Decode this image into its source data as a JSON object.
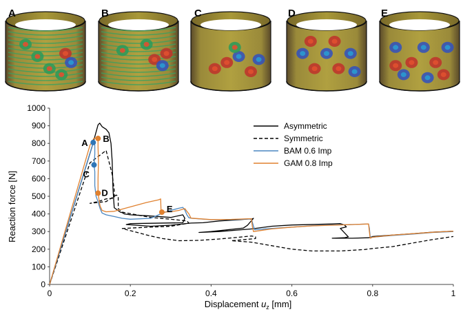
{
  "panels": [
    "A",
    "B",
    "C",
    "D",
    "E"
  ],
  "chart_data": {
    "type": "line",
    "xlabel_main": "Displacement ",
    "xlabel_italic": "u",
    "xlabel_sub": "z",
    "xlabel_unit": " [mm]",
    "ylabel": "Reaction force [N]",
    "xlim": [
      0,
      1
    ],
    "ylim": [
      0,
      1000
    ],
    "xticks": [
      "0",
      "0.2",
      "0.4",
      "0.6",
      "0.8",
      "1"
    ],
    "xtick_values": [
      0,
      0.2,
      0.4,
      0.6,
      0.8,
      1
    ],
    "yticks": [
      "0",
      "100",
      "200",
      "300",
      "400",
      "500",
      "600",
      "700",
      "800",
      "900",
      "1000"
    ],
    "ytick_values": [
      0,
      100,
      200,
      300,
      400,
      500,
      600,
      700,
      800,
      900,
      1000
    ],
    "legend_position": "top-right",
    "series": [
      {
        "name": "Asymmetric",
        "color": "#000000",
        "dash": "solid",
        "points": [
          [
            0,
            0
          ],
          [
            0.105,
            780
          ],
          [
            0.12,
            905
          ],
          [
            0.124,
            915
          ],
          [
            0.13,
            895
          ],
          [
            0.14,
            880
          ],
          [
            0.147,
            860
          ],
          [
            0.152,
            800
          ],
          [
            0.155,
            700
          ],
          [
            0.157,
            540
          ],
          [
            0.16,
            435
          ],
          [
            0.175,
            410
          ],
          [
            0.18,
            407
          ],
          [
            0.185,
            400
          ],
          [
            0.2,
            395
          ],
          [
            0.24,
            390
          ],
          [
            0.3,
            380
          ],
          [
            0.33,
            395
          ],
          [
            0.335,
            375
          ],
          [
            0.33,
            350
          ],
          [
            0.2,
            345
          ],
          [
            0.19,
            340
          ],
          [
            0.25,
            330
          ],
          [
            0.3,
            336
          ],
          [
            0.35,
            348
          ],
          [
            0.38,
            350
          ],
          [
            0.42,
            360
          ],
          [
            0.47,
            367
          ],
          [
            0.495,
            372
          ],
          [
            0.5,
            370
          ],
          [
            0.505,
            375
          ],
          [
            0.49,
            335
          ],
          [
            0.48,
            320
          ],
          [
            0.4,
            300
          ],
          [
            0.37,
            295
          ],
          [
            0.42,
            300
          ],
          [
            0.5,
            315
          ],
          [
            0.55,
            330
          ],
          [
            0.6,
            337
          ],
          [
            0.7,
            343
          ],
          [
            0.72,
            345
          ],
          [
            0.73,
            338
          ],
          [
            0.735,
            326
          ],
          [
            0.72,
            318
          ],
          [
            0.74,
            270
          ],
          [
            0.73,
            265
          ],
          [
            0.7,
            262
          ],
          [
            0.75,
            262
          ],
          [
            0.79,
            265
          ],
          [
            0.8,
            272
          ],
          [
            0.85,
            280
          ],
          [
            0.9,
            288
          ],
          [
            0.95,
            297
          ],
          [
            1.0,
            302
          ]
        ]
      },
      {
        "name": "Symmetric",
        "color": "#000000",
        "dash": "dashed",
        "points": [
          [
            0,
            0
          ],
          [
            0.1,
            690
          ],
          [
            0.14,
            760
          ],
          [
            0.155,
            625
          ],
          [
            0.16,
            535
          ],
          [
            0.16,
            490
          ],
          [
            0.14,
            485
          ],
          [
            0.12,
            470
          ],
          [
            0.1,
            460
          ],
          [
            0.14,
            470
          ],
          [
            0.165,
            507
          ],
          [
            0.17,
            500
          ],
          [
            0.17,
            430
          ],
          [
            0.18,
            410
          ],
          [
            0.25,
            380
          ],
          [
            0.3,
            370
          ],
          [
            0.34,
            360
          ],
          [
            0.345,
            348
          ],
          [
            0.3,
            330
          ],
          [
            0.2,
            320
          ],
          [
            0.18,
            317
          ],
          [
            0.2,
            305
          ],
          [
            0.25,
            275
          ],
          [
            0.28,
            260
          ],
          [
            0.32,
            248
          ],
          [
            0.37,
            250
          ],
          [
            0.42,
            258
          ],
          [
            0.47,
            268
          ],
          [
            0.5,
            275
          ],
          [
            0.51,
            270
          ],
          [
            0.51,
            260
          ],
          [
            0.47,
            252
          ],
          [
            0.45,
            248
          ],
          [
            0.5,
            240
          ],
          [
            0.55,
            220
          ],
          [
            0.6,
            200
          ],
          [
            0.65,
            190
          ],
          [
            0.72,
            190
          ],
          [
            0.78,
            198
          ],
          [
            0.8,
            204
          ],
          [
            0.85,
            215
          ],
          [
            0.9,
            235
          ],
          [
            0.95,
            255
          ],
          [
            1.0,
            272
          ]
        ]
      },
      {
        "name": "BAM 0.6 Imp",
        "color": "#4a86c0",
        "dash": "solid",
        "points": [
          [
            0,
            0
          ],
          [
            0.108,
            805
          ],
          [
            0.11,
            805
          ],
          [
            0.112,
            790
          ],
          [
            0.112,
            740
          ],
          [
            0.11,
            678
          ],
          [
            0.112,
            640
          ],
          [
            0.112,
            560
          ],
          [
            0.115,
            500
          ],
          [
            0.12,
            470
          ],
          [
            0.123,
            445
          ],
          [
            0.125,
            430
          ],
          [
            0.13,
            405
          ],
          [
            0.14,
            395
          ],
          [
            0.16,
            385
          ],
          [
            0.18,
            375
          ],
          [
            0.2,
            370
          ],
          [
            0.25,
            375
          ],
          [
            0.28,
            405
          ],
          [
            0.3,
            420
          ],
          [
            0.32,
            432
          ],
          [
            0.33,
            437
          ],
          [
            0.335,
            422
          ],
          [
            0.34,
            395
          ],
          [
            0.345,
            378
          ],
          [
            0.352,
            375
          ],
          [
            0.4,
            367
          ],
          [
            0.45,
            368
          ],
          [
            0.5,
            372
          ],
          [
            0.505,
            330
          ],
          [
            0.508,
            310
          ],
          [
            0.55,
            318
          ],
          [
            0.6,
            325
          ],
          [
            0.65,
            333
          ],
          [
            0.7,
            337
          ],
          [
            0.75,
            340
          ],
          [
            0.79,
            343
          ],
          [
            0.792,
            320
          ],
          [
            0.794,
            270
          ],
          [
            0.8,
            268
          ],
          [
            0.85,
            278
          ],
          [
            0.9,
            286
          ],
          [
            0.95,
            295
          ],
          [
            1.0,
            300
          ]
        ]
      },
      {
        "name": "GAM 0.8 Imp",
        "color": "#e0812f",
        "dash": "solid",
        "points": [
          [
            0,
            0
          ],
          [
            0.1,
            790
          ],
          [
            0.11,
            830
          ],
          [
            0.118,
            830
          ],
          [
            0.12,
            825
          ],
          [
            0.12,
            780
          ],
          [
            0.121,
            700
          ],
          [
            0.12,
            600
          ],
          [
            0.12,
            520
          ],
          [
            0.123,
            470
          ],
          [
            0.125,
            445
          ],
          [
            0.13,
            420
          ],
          [
            0.14,
            412
          ],
          [
            0.16,
            415
          ],
          [
            0.2,
            440
          ],
          [
            0.24,
            465
          ],
          [
            0.27,
            480
          ],
          [
            0.275,
            485
          ],
          [
            0.276,
            420
          ],
          [
            0.278,
            410
          ],
          [
            0.3,
            412
          ],
          [
            0.32,
            420
          ],
          [
            0.335,
            430
          ],
          [
            0.34,
            415
          ],
          [
            0.345,
            400
          ],
          [
            0.35,
            376
          ],
          [
            0.4,
            368
          ],
          [
            0.45,
            369
          ],
          [
            0.5,
            373
          ],
          [
            0.502,
            330
          ],
          [
            0.505,
            300
          ],
          [
            0.55,
            315
          ],
          [
            0.6,
            325
          ],
          [
            0.65,
            332
          ],
          [
            0.7,
            336
          ],
          [
            0.75,
            340
          ],
          [
            0.79,
            343
          ],
          [
            0.792,
            300
          ],
          [
            0.794,
            262
          ],
          [
            0.8,
            268
          ],
          [
            0.85,
            280
          ],
          [
            0.9,
            288
          ],
          [
            0.95,
            296
          ],
          [
            1.0,
            302
          ]
        ]
      }
    ],
    "markers": [
      {
        "label": "A",
        "x": 0.108,
        "y": 805,
        "color": "#2e75b6"
      },
      {
        "label": "B",
        "x": 0.12,
        "y": 828,
        "color": "#e0812f"
      },
      {
        "label": "C",
        "x": 0.11,
        "y": 678,
        "color": "#2e75b6"
      },
      {
        "label": "D",
        "x": 0.12,
        "y": 518,
        "color": "#e0812f"
      },
      {
        "label": "E",
        "x": 0.278,
        "y": 410,
        "color": "#e0812f"
      }
    ]
  }
}
